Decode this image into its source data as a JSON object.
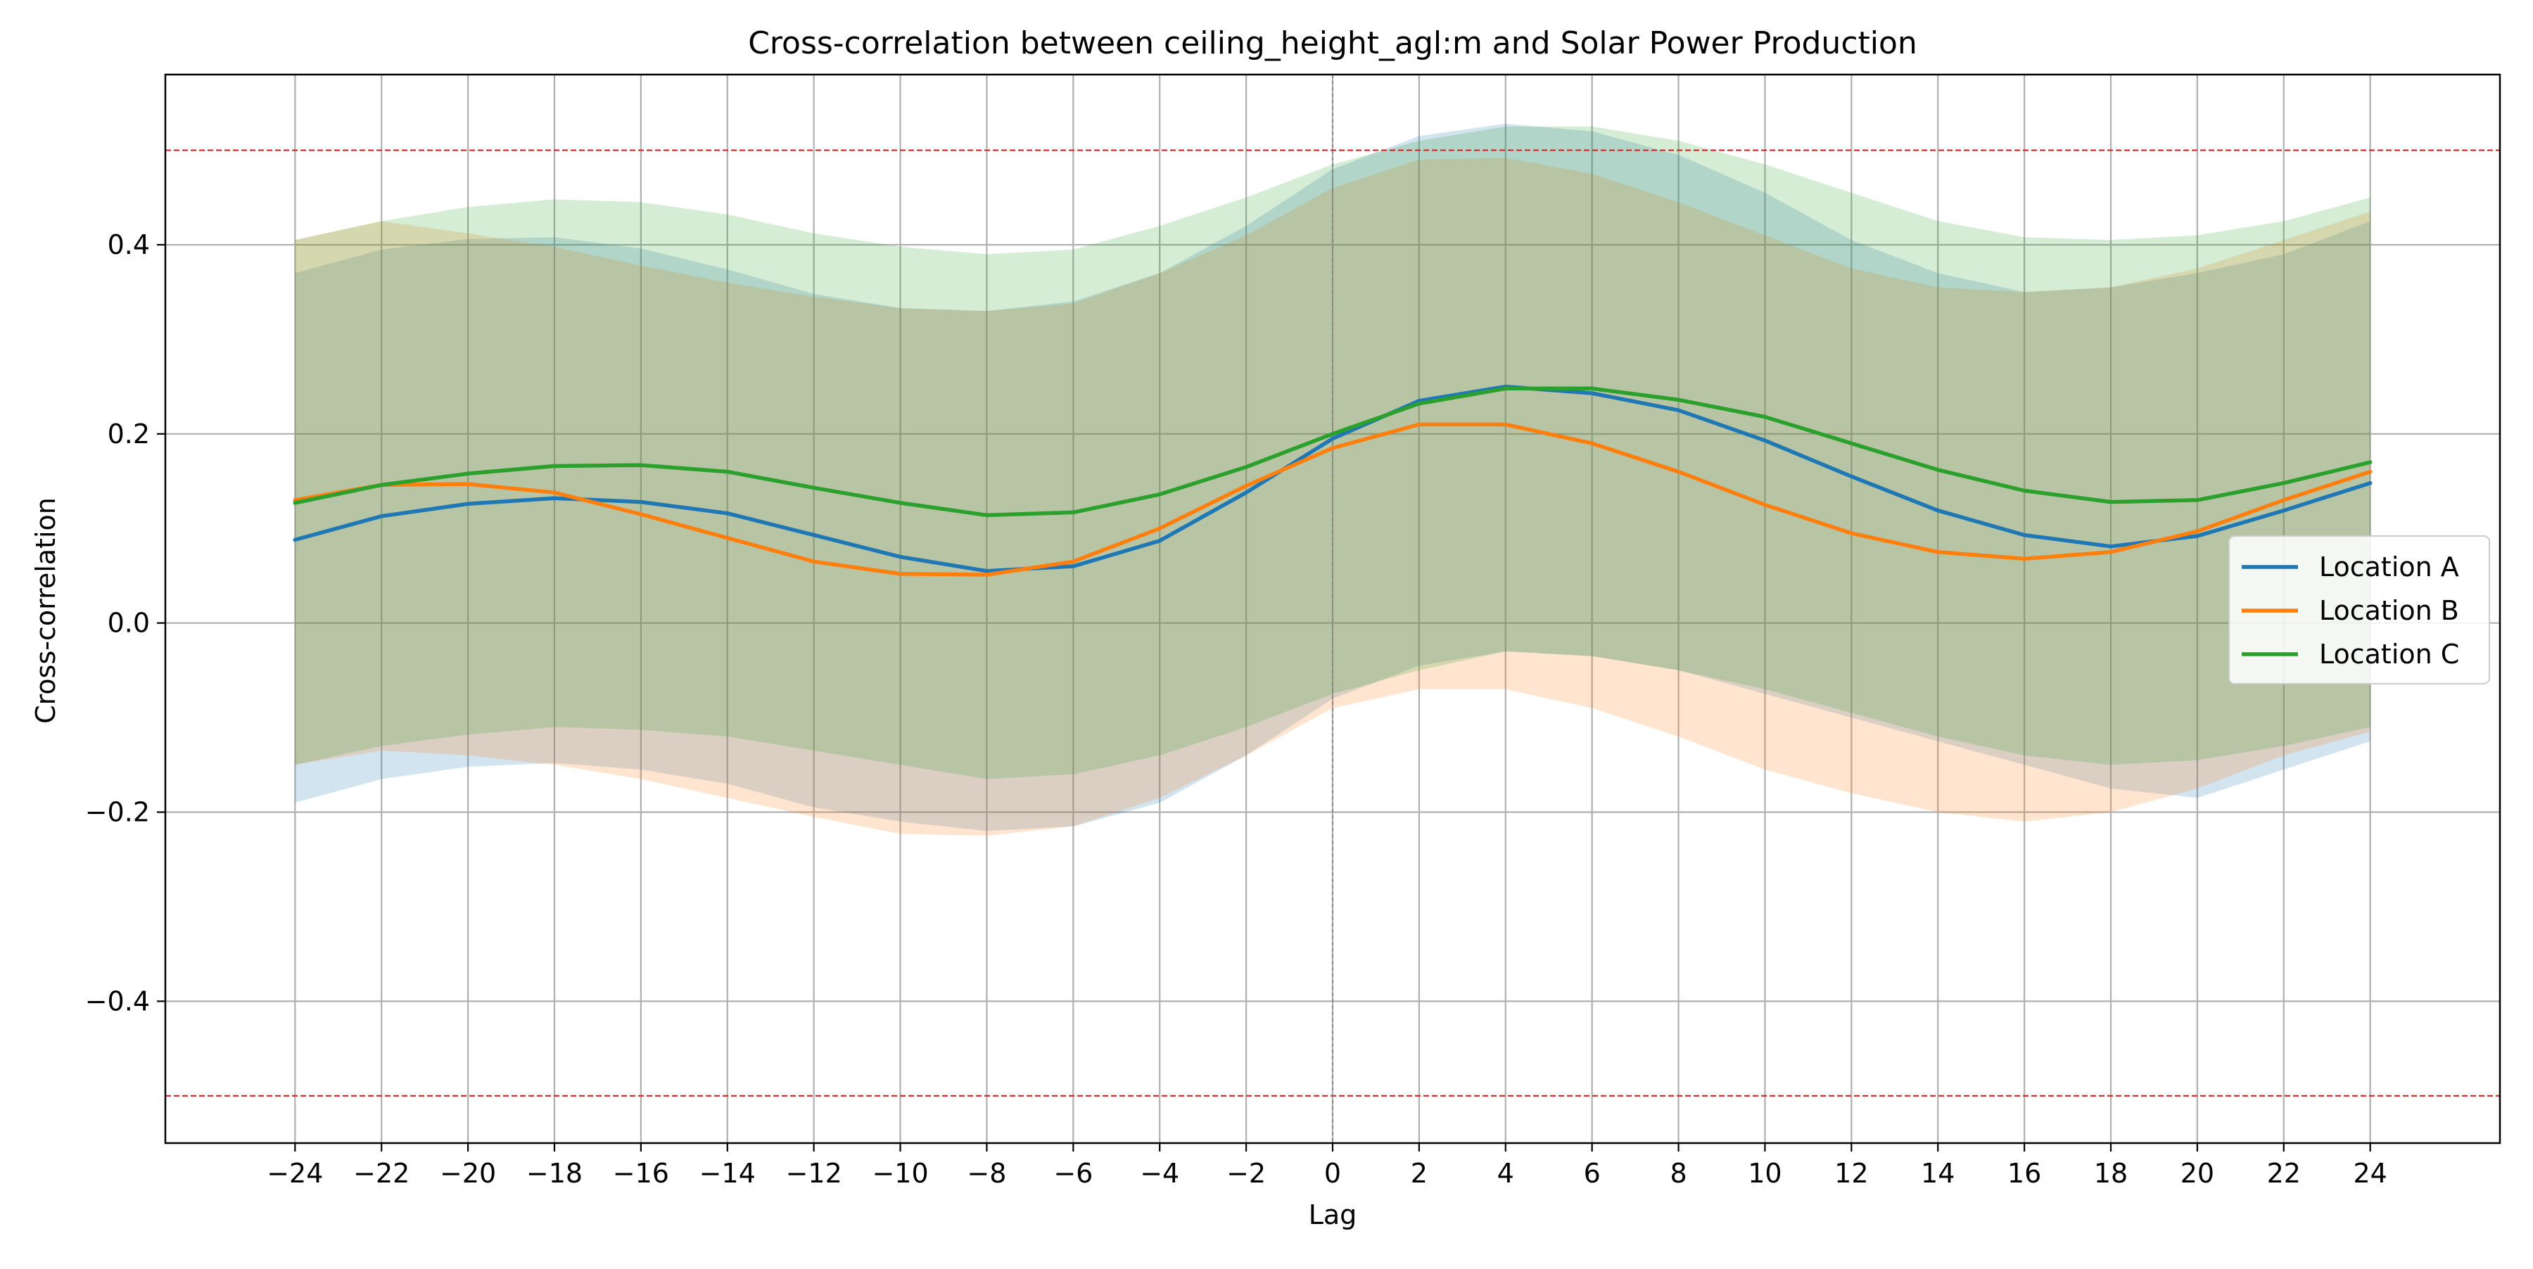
{
  "chart_data": {
    "type": "line",
    "title": "Cross-correlation between ceiling_height_agl:m and Solar Power Production",
    "xlabel": "Lag",
    "ylabel": "Cross-correlation",
    "xlim": [
      -27,
      27
    ],
    "ylim": [
      -0.55,
      0.58
    ],
    "x_ticks": [
      -24,
      -22,
      -20,
      -18,
      -16,
      -14,
      -12,
      -10,
      -8,
      -6,
      -4,
      -2,
      0,
      2,
      4,
      6,
      8,
      10,
      12,
      14,
      16,
      18,
      20,
      22,
      24
    ],
    "x_tick_labels": [
      "−24",
      "−22",
      "−20",
      "−18",
      "−16",
      "−14",
      "−12",
      "−10",
      "−8",
      "−6",
      "−4",
      "−2",
      "0",
      "2",
      "4",
      "6",
      "8",
      "10",
      "12",
      "14",
      "16",
      "18",
      "20",
      "22",
      "24"
    ],
    "y_ticks": [
      -0.4,
      -0.2,
      0.0,
      0.2,
      0.4
    ],
    "y_tick_labels": [
      "−0.4",
      "−0.2",
      "0.0",
      "0.2",
      "0.4"
    ],
    "grid": true,
    "legend_position": "center-right",
    "reference_lines": [
      {
        "y": 0.5,
        "color": "#d62728",
        "style": "dashed"
      },
      {
        "y": -0.5,
        "color": "#d62728",
        "style": "dashed"
      }
    ],
    "zero_lag_line": {
      "x": 0,
      "color": "#888888",
      "style": "dashed"
    },
    "series": [
      {
        "name": "Location A",
        "color": "#1f77b4",
        "x": [
          -24,
          -22,
          -20,
          -18,
          -16,
          -14,
          -12,
          -10,
          -8,
          -6,
          -4,
          -2,
          0,
          2,
          4,
          6,
          8,
          10,
          12,
          14,
          16,
          18,
          20,
          22,
          24
        ],
        "y": [
          0.088,
          0.113,
          0.126,
          0.132,
          0.128,
          0.116,
          0.093,
          0.07,
          0.055,
          0.06,
          0.087,
          0.138,
          0.195,
          0.235,
          0.25,
          0.243,
          0.225,
          0.193,
          0.155,
          0.119,
          0.093,
          0.081,
          0.092,
          0.119,
          0.148
        ],
        "upper": [
          0.37,
          0.395,
          0.406,
          0.408,
          0.396,
          0.374,
          0.348,
          0.333,
          0.33,
          0.34,
          0.37,
          0.42,
          0.48,
          0.515,
          0.528,
          0.52,
          0.495,
          0.455,
          0.405,
          0.37,
          0.35,
          0.355,
          0.37,
          0.39,
          0.425
        ],
        "lower": [
          -0.19,
          -0.165,
          -0.152,
          -0.148,
          -0.155,
          -0.17,
          -0.195,
          -0.21,
          -0.22,
          -0.215,
          -0.19,
          -0.14,
          -0.08,
          -0.045,
          -0.03,
          -0.035,
          -0.05,
          -0.075,
          -0.1,
          -0.125,
          -0.15,
          -0.175,
          -0.185,
          -0.155,
          -0.125
        ]
      },
      {
        "name": "Location B",
        "color": "#ff7f0e",
        "x": [
          -24,
          -22,
          -20,
          -18,
          -16,
          -14,
          -12,
          -10,
          -8,
          -6,
          -4,
          -2,
          0,
          2,
          4,
          6,
          8,
          10,
          12,
          14,
          16,
          18,
          20,
          22,
          24
        ],
        "y": [
          0.13,
          0.146,
          0.147,
          0.138,
          0.115,
          0.09,
          0.065,
          0.052,
          0.051,
          0.065,
          0.1,
          0.145,
          0.185,
          0.21,
          0.21,
          0.19,
          0.16,
          0.125,
          0.095,
          0.075,
          0.068,
          0.075,
          0.097,
          0.13,
          0.16
        ],
        "upper": [
          0.405,
          0.425,
          0.412,
          0.398,
          0.378,
          0.36,
          0.345,
          0.333,
          0.33,
          0.338,
          0.37,
          0.41,
          0.46,
          0.49,
          0.492,
          0.475,
          0.445,
          0.41,
          0.375,
          0.355,
          0.35,
          0.355,
          0.375,
          0.405,
          0.435
        ],
        "lower": [
          -0.15,
          -0.135,
          -0.14,
          -0.15,
          -0.165,
          -0.185,
          -0.205,
          -0.223,
          -0.225,
          -0.215,
          -0.185,
          -0.14,
          -0.09,
          -0.07,
          -0.07,
          -0.09,
          -0.12,
          -0.155,
          -0.18,
          -0.2,
          -0.21,
          -0.2,
          -0.175,
          -0.14,
          -0.115
        ]
      },
      {
        "name": "Location C",
        "color": "#2ca02c",
        "x": [
          -24,
          -22,
          -20,
          -18,
          -16,
          -14,
          -12,
          -10,
          -8,
          -6,
          -4,
          -2,
          0,
          2,
          4,
          6,
          8,
          10,
          12,
          14,
          16,
          18,
          20,
          22,
          24
        ],
        "y": [
          0.127,
          0.146,
          0.158,
          0.166,
          0.167,
          0.16,
          0.143,
          0.127,
          0.114,
          0.117,
          0.136,
          0.165,
          0.2,
          0.232,
          0.248,
          0.248,
          0.236,
          0.218,
          0.19,
          0.162,
          0.14,
          0.128,
          0.13,
          0.148,
          0.17
        ],
        "upper": [
          0.405,
          0.425,
          0.44,
          0.448,
          0.445,
          0.432,
          0.412,
          0.398,
          0.39,
          0.395,
          0.42,
          0.45,
          0.485,
          0.51,
          0.525,
          0.525,
          0.51,
          0.485,
          0.455,
          0.425,
          0.408,
          0.405,
          0.41,
          0.425,
          0.45
        ],
        "lower": [
          -0.15,
          -0.13,
          -0.118,
          -0.11,
          -0.113,
          -0.12,
          -0.135,
          -0.15,
          -0.165,
          -0.16,
          -0.14,
          -0.11,
          -0.075,
          -0.05,
          -0.03,
          -0.035,
          -0.05,
          -0.07,
          -0.095,
          -0.12,
          -0.14,
          -0.15,
          -0.145,
          -0.13,
          -0.11
        ]
      }
    ]
  }
}
